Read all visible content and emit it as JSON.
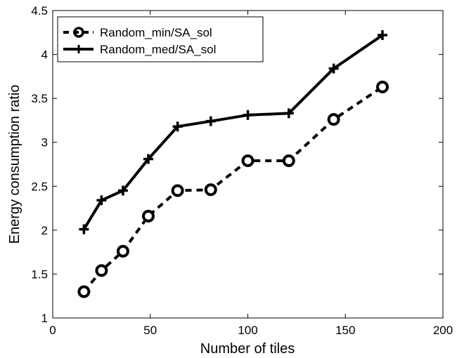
{
  "chart_data": {
    "type": "line",
    "xlabel": "Number of tiles",
    "ylabel": "Energy consumption ratio",
    "xlim": [
      0,
      200
    ],
    "ylim": [
      1,
      4.5
    ],
    "xticks": [
      "0",
      "50",
      "100",
      "150",
      "200"
    ],
    "yticks": [
      "1",
      "1.5",
      "2",
      "2.5",
      "3",
      "3.5",
      "4",
      "4.5"
    ],
    "grid": false,
    "legend_position": "top-left",
    "series": [
      {
        "name": "Random_min/SA_sol",
        "style": "dashed",
        "marker": "circle",
        "color": "#000000",
        "x": [
          16,
          25,
          36,
          49,
          64,
          81,
          100,
          121,
          144,
          169
        ],
        "y": [
          1.3,
          1.54,
          1.76,
          2.16,
          2.45,
          2.46,
          2.79,
          2.79,
          3.26,
          3.63
        ]
      },
      {
        "name": "Random_med/SA_sol",
        "style": "solid",
        "marker": "plus",
        "color": "#000000",
        "x": [
          16,
          25,
          36,
          49,
          64,
          81,
          100,
          121,
          144,
          169
        ],
        "y": [
          2.01,
          2.34,
          2.45,
          2.81,
          3.18,
          3.24,
          3.31,
          3.33,
          3.84,
          4.22
        ]
      }
    ]
  }
}
